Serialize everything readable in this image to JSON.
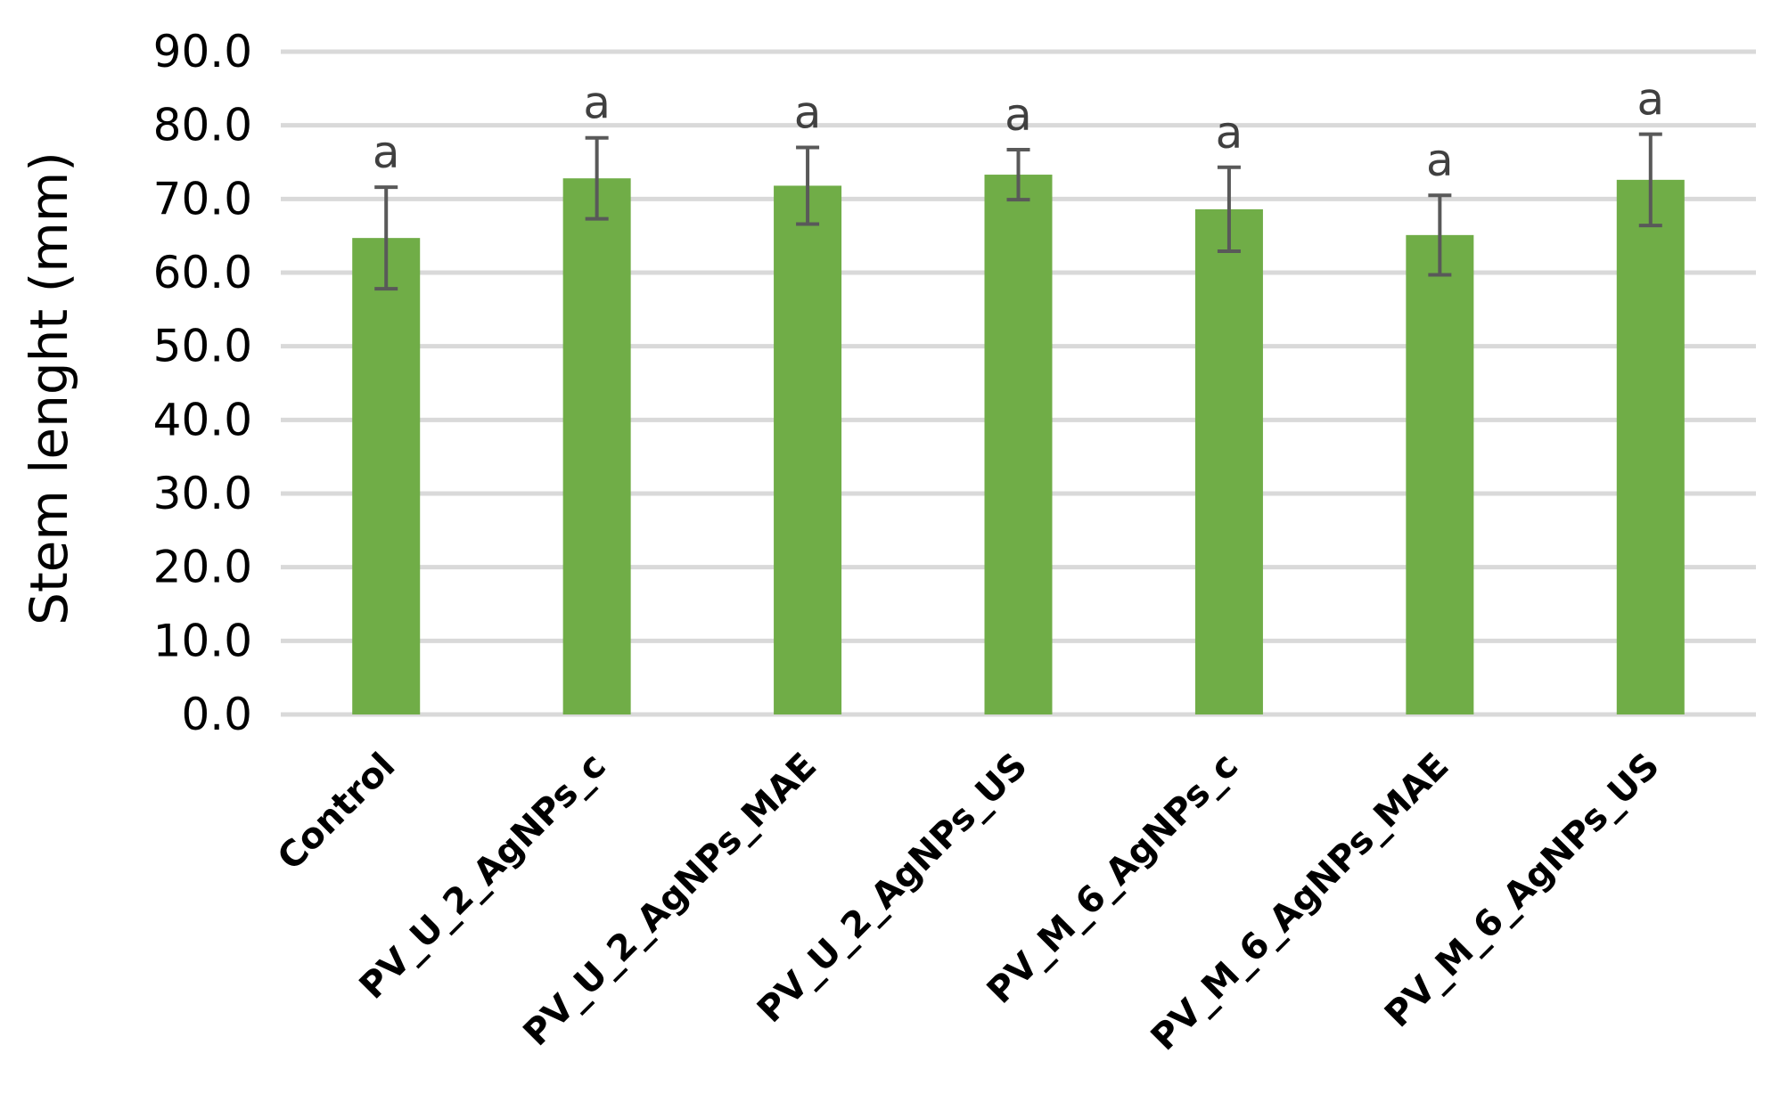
{
  "chart_data": {
    "type": "bar",
    "categories": [
      "Control",
      "PV_U_2_AgNPs_c",
      "PV_U_2_AgNPs_MAE",
      "PV_U_2_AgNPs_US",
      "PV_M_6_AgNPs_c",
      "PV_M_6_AgNPs_MAE",
      "PV_M_6_AgNPs_US"
    ],
    "values": [
      64.7,
      72.8,
      71.8,
      73.3,
      68.6,
      65.1,
      72.6
    ],
    "errors": [
      6.9,
      5.5,
      5.2,
      3.4,
      5.7,
      5.4,
      6.2
    ],
    "significance": [
      "a",
      "a",
      "a",
      "a",
      "a",
      "a",
      "a"
    ],
    "yticks": [
      "0.0",
      "10.0",
      "20.0",
      "30.0",
      "40.0",
      "50.0",
      "60.0",
      "70.0",
      "80.0",
      "90.0"
    ],
    "ylim": [
      0,
      90
    ],
    "ylabel": "Stem lenght (mm)",
    "xlabel": "",
    "title": "",
    "grid": true,
    "colors": {
      "bar": "#70ad47",
      "error": "#595959",
      "grid": "#d9d9d9"
    }
  }
}
